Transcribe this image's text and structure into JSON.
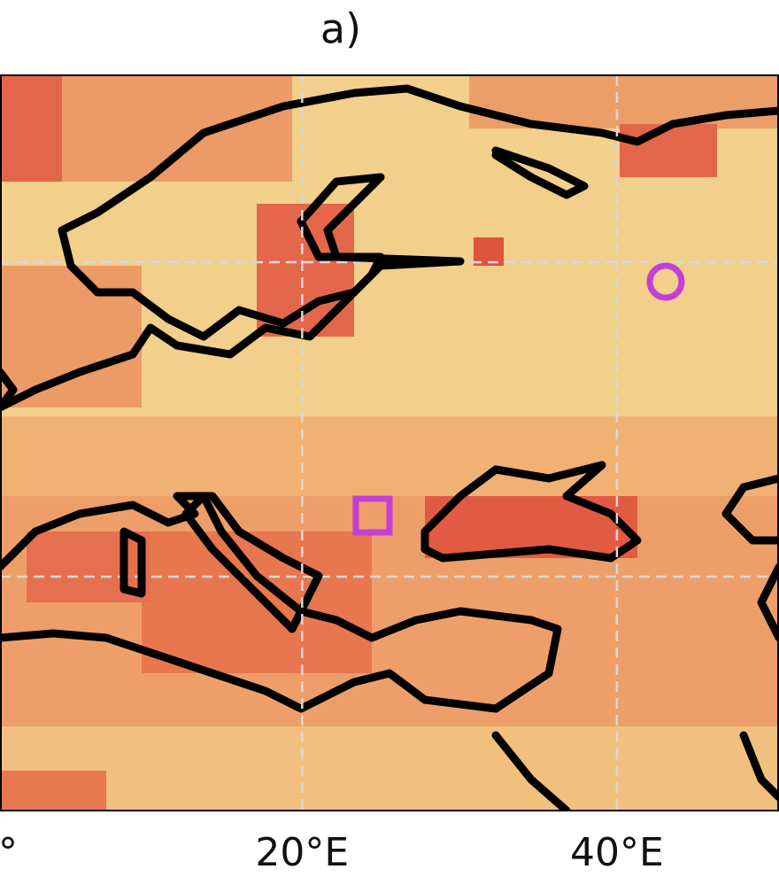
{
  "title": "a)",
  "map": {
    "xlim": [
      0.8,
      50.3
    ],
    "xticks": [
      {
        "value": 20,
        "label": "20°E"
      },
      {
        "value": 40,
        "label": "40°E"
      }
    ],
    "left_edge_label": "°"
  }
}
